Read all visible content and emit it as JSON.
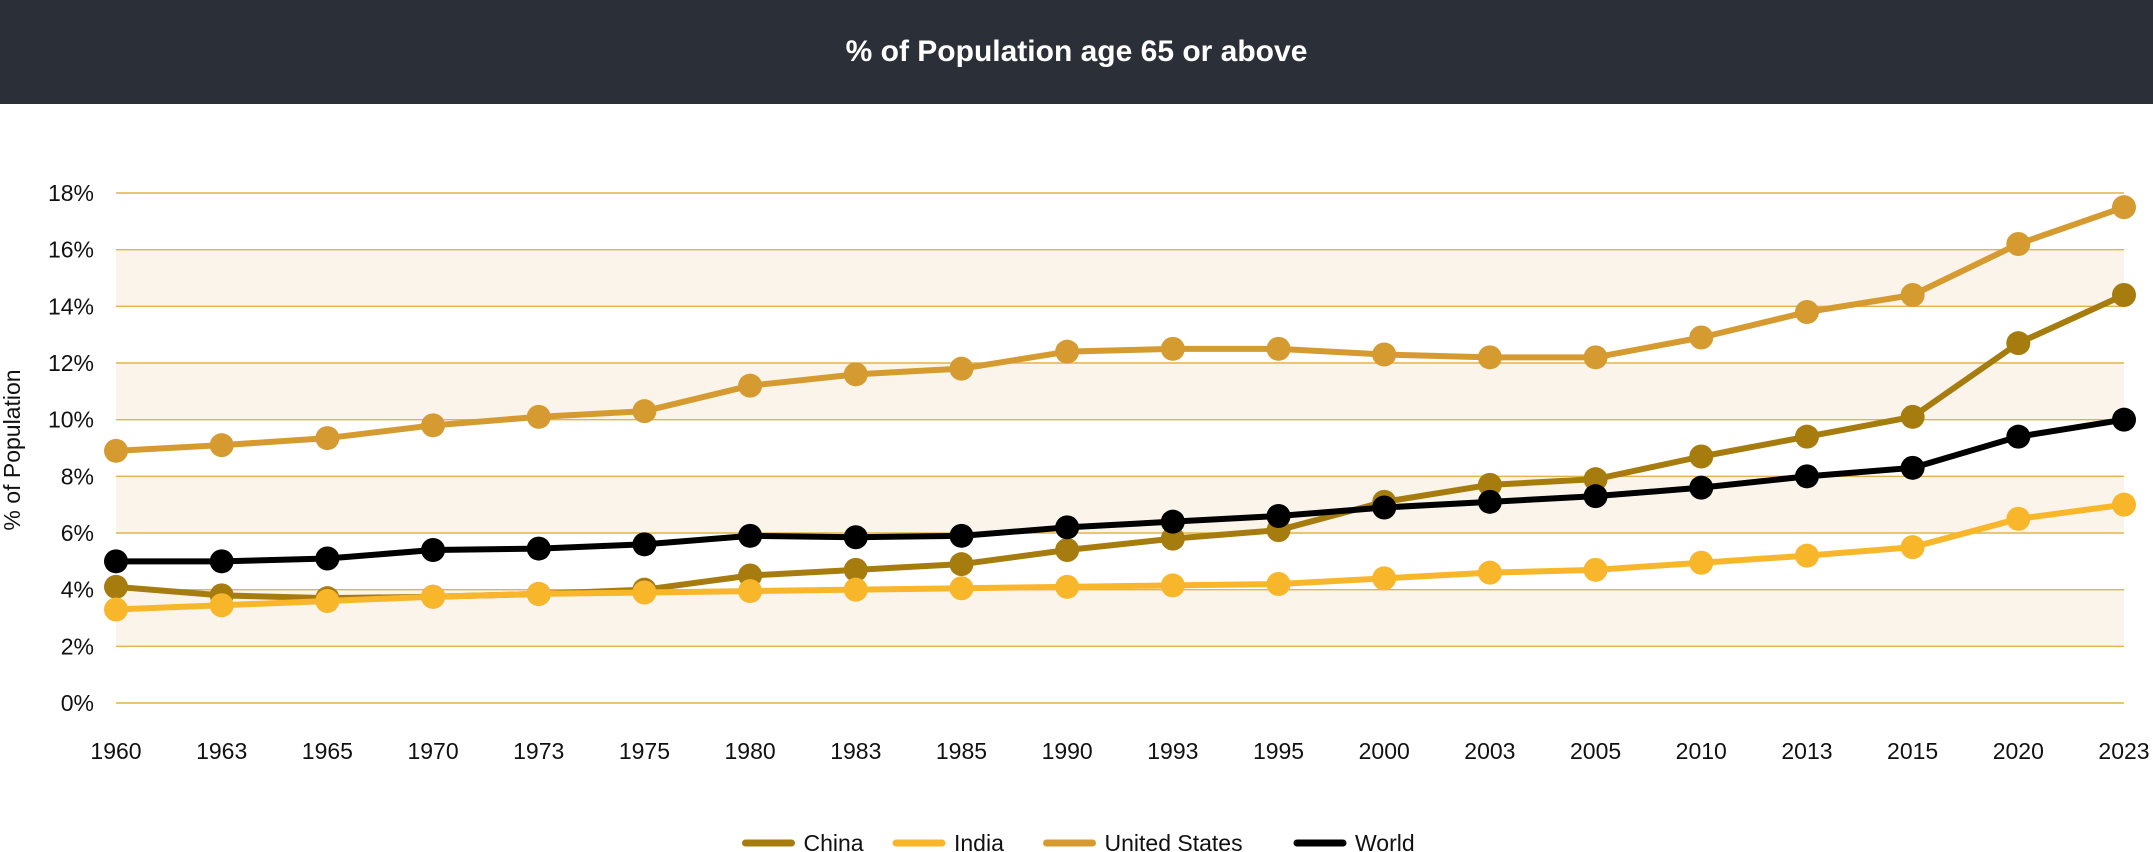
{
  "header": {
    "title": "% of Population age 65 or above"
  },
  "chart_data": {
    "type": "line",
    "title": "% of Population age 65 or above",
    "xlabel": "",
    "ylabel": "% of Population",
    "ylim": [
      0,
      18
    ],
    "yticks": [
      "0%",
      "2%",
      "4%",
      "6%",
      "8%",
      "10%",
      "12%",
      "14%",
      "16%",
      "18%"
    ],
    "categories": [
      "1960",
      "1963",
      "1965",
      "1970",
      "1973",
      "1975",
      "1980",
      "1983",
      "1985",
      "1990",
      "1993",
      "1995",
      "2000",
      "2003",
      "2005",
      "2010",
      "2013",
      "2015",
      "2020",
      "2023"
    ],
    "grid": true,
    "legend_position": "bottom",
    "series": [
      {
        "name": "China",
        "color": "#a67c0f",
        "values": [
          4.1,
          3.8,
          3.7,
          3.75,
          3.85,
          4.0,
          4.5,
          4.7,
          4.9,
          5.4,
          5.8,
          6.1,
          7.1,
          7.7,
          7.9,
          8.7,
          9.4,
          10.1,
          12.7,
          14.4
        ]
      },
      {
        "name": "India",
        "color": "#f8b62b",
        "values": [
          3.3,
          3.45,
          3.6,
          3.75,
          3.85,
          3.9,
          3.95,
          4.0,
          4.05,
          4.1,
          4.15,
          4.2,
          4.4,
          4.6,
          4.7,
          4.95,
          5.2,
          5.5,
          6.5,
          7.0
        ]
      },
      {
        "name": "United States",
        "color": "#d59b31",
        "values": [
          8.9,
          9.1,
          9.35,
          9.8,
          10.1,
          10.3,
          11.2,
          11.6,
          11.8,
          12.4,
          12.5,
          12.5,
          12.3,
          12.2,
          12.2,
          12.9,
          13.8,
          14.4,
          16.2,
          17.5
        ]
      },
      {
        "name": "World",
        "color": "#000000",
        "values": [
          5.0,
          5.0,
          5.1,
          5.4,
          5.45,
          5.6,
          5.9,
          5.85,
          5.9,
          6.2,
          6.4,
          6.6,
          6.9,
          7.1,
          7.3,
          7.6,
          8.0,
          8.3,
          9.4,
          10.0
        ]
      }
    ]
  }
}
